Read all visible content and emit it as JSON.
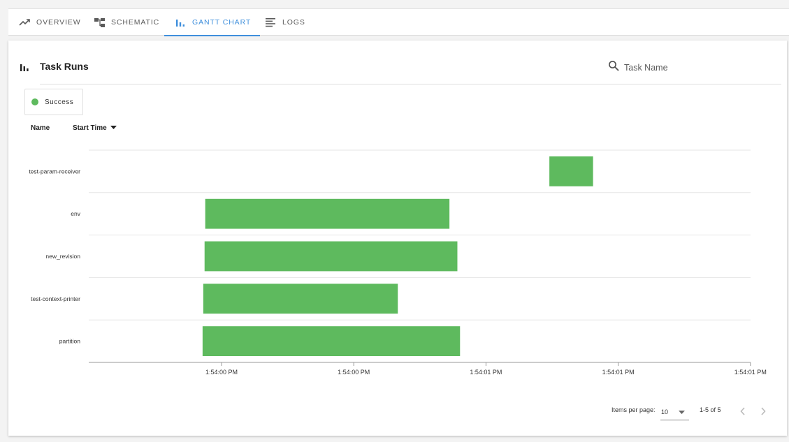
{
  "tabs": [
    {
      "label": "OVERVIEW",
      "icon": "trending-up-icon",
      "active": false
    },
    {
      "label": "SCHEMATIC",
      "icon": "schematic-icon",
      "active": false
    },
    {
      "label": "GANTT CHART",
      "icon": "bar-chart-icon",
      "active": true
    },
    {
      "label": "LOGS",
      "icon": "logs-icon",
      "active": false
    }
  ],
  "panel": {
    "title": "Task Runs",
    "search_placeholder": "Task Name"
  },
  "legend": {
    "label": "Success",
    "color": "#5eba5e"
  },
  "columns": {
    "name": "Name",
    "start_time": "Start Time"
  },
  "chart_data": {
    "type": "gantt",
    "tasks": [
      {
        "name": "test-param-receiver",
        "start": 0.696,
        "end": 0.762,
        "state": "Success"
      },
      {
        "name": "env",
        "start": 0.176,
        "end": 0.545,
        "state": "Success"
      },
      {
        "name": "new_revision",
        "start": 0.175,
        "end": 0.557,
        "state": "Success"
      },
      {
        "name": "test-context-printer",
        "start": 0.173,
        "end": 0.467,
        "state": "Success"
      },
      {
        "name": "partition",
        "start": 0.172,
        "end": 0.561,
        "state": "Success"
      }
    ],
    "x_ticks": [
      "1:54:00 PM",
      "1:54:00 PM",
      "1:54:01 PM",
      "1:54:01 PM",
      "1:54:01 PM"
    ],
    "bar_color": "#5eba5e"
  },
  "pagination": {
    "items_label": "Items per page:",
    "per_page": "10",
    "range": "1-5 of 5"
  }
}
